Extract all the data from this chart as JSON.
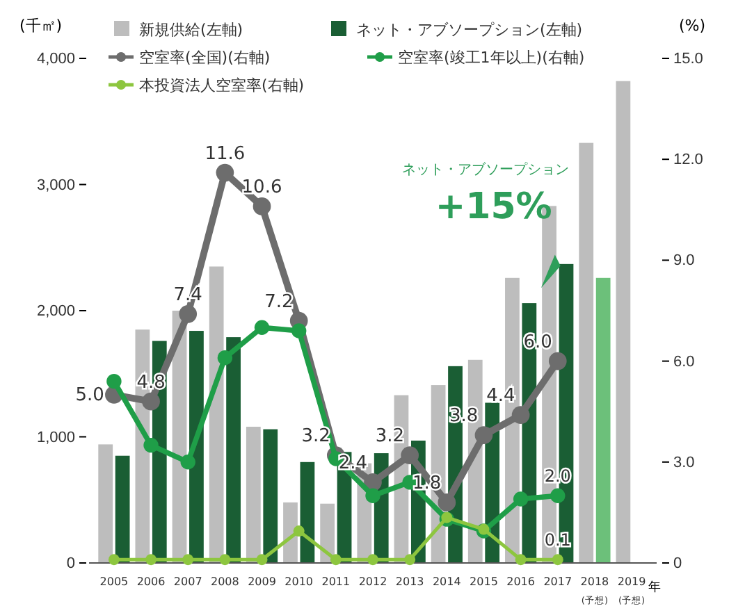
{
  "chart_data": {
    "type": "bar",
    "xlabel": "年",
    "ylabel": "(千㎡)",
    "y2label": "(%)",
    "categories": [
      "2005",
      "2006",
      "2007",
      "2008",
      "2009",
      "2010",
      "2011",
      "2012",
      "2013",
      "2014",
      "2015",
      "2016",
      "2017",
      "2018$_{(予想)}$",
      "2019$_{(予想)}$"
    ],
    "series": [
      {
        "name": "新規供給(左軸)",
        "color": "#bdbdbd",
        "values": [
          940,
          1850,
          2000,
          2350,
          1080,
          480,
          470,
          790,
          1330,
          1410,
          1610,
          2260,
          2830,
          3330,
          3820
        ]
      },
      {
        "name": "ネット・アブソープション(左軸)",
        "color": "#1a5e34",
        "colors": [
          "#1a5e34",
          "#1a5e34",
          "#1a5e34",
          "#1a5e34",
          "#1a5e34",
          "#1a5e34",
          "#1a5e34",
          "#1a5e34",
          "#1a5e34",
          "#1a5e34",
          "#1a5e34",
          "#1a5e34",
          "#1a5e34",
          "#6cc07a",
          null
        ],
        "values": [
          850,
          1760,
          1840,
          1790,
          1060,
          800,
          880,
          870,
          970,
          1560,
          1270,
          2060,
          2370,
          2260,
          null
        ]
      },
      {
        "name": "空室率(全国)(右軸)",
        "type": "line",
        "axis": "y2",
        "color": "#6d6d6d",
        "values": [
          5.0,
          4.8,
          7.4,
          11.6,
          10.6,
          7.2,
          3.2,
          2.4,
          3.2,
          1.8,
          3.8,
          4.4,
          6.0,
          null,
          null
        ],
        "value_labels": [
          "5.0",
          "4.8",
          "7.4",
          "11.6",
          "10.6",
          "7.2",
          "3.2",
          "2.4",
          "3.2",
          "1.8",
          "3.8",
          "4.4",
          "6.0",
          null,
          null
        ]
      },
      {
        "name": "空室率(竣工1年以上)(右軸)",
        "type": "line",
        "axis": "y2",
        "color": "#1f9e48",
        "values": [
          5.4,
          3.5,
          3.0,
          6.1,
          7.0,
          6.9,
          3.1,
          2.0,
          2.4,
          1.3,
          0.95,
          1.9,
          2.0,
          null,
          null
        ],
        "value_labels": [
          null,
          null,
          null,
          null,
          null,
          null,
          null,
          null,
          null,
          null,
          null,
          null,
          "2.0",
          null,
          null
        ]
      },
      {
        "name": "本投資法人空室率(右軸)",
        "type": "line",
        "axis": "y2",
        "color": "#8dc63f",
        "values": [
          0.1,
          0.1,
          0.1,
          0.1,
          0.1,
          0.95,
          0.1,
          0.1,
          0.1,
          1.35,
          1.0,
          0.1,
          0.1,
          null,
          null
        ],
        "value_labels": [
          null,
          null,
          null,
          null,
          null,
          null,
          null,
          null,
          null,
          null,
          null,
          null,
          "0.1",
          null,
          null
        ]
      }
    ],
    "ylim": [
      0,
      4000
    ],
    "yticks": [
      {
        "value": 0,
        "label": "0"
      },
      {
        "value": 1000,
        "label": "1,000"
      },
      {
        "value": 2000,
        "label": "2,000"
      },
      {
        "value": 3000,
        "label": "3,000"
      },
      {
        "value": 4000,
        "label": "4,000"
      }
    ],
    "y2lim": [
      0,
      15
    ],
    "y2ticks": [
      {
        "value": 0,
        "label": "0"
      },
      {
        "value": 3,
        "label": "3.0"
      },
      {
        "value": 6,
        "label": "6.0"
      },
      {
        "value": 9,
        "label": "9.0"
      },
      {
        "value": 12,
        "label": "12.0"
      },
      {
        "value": 15,
        "label": "15.0"
      }
    ],
    "marker": "circle",
    "legend": "top",
    "grid": false,
    "annotations": [
      "ネット・アブソープション",
      "+15%"
    ]
  }
}
